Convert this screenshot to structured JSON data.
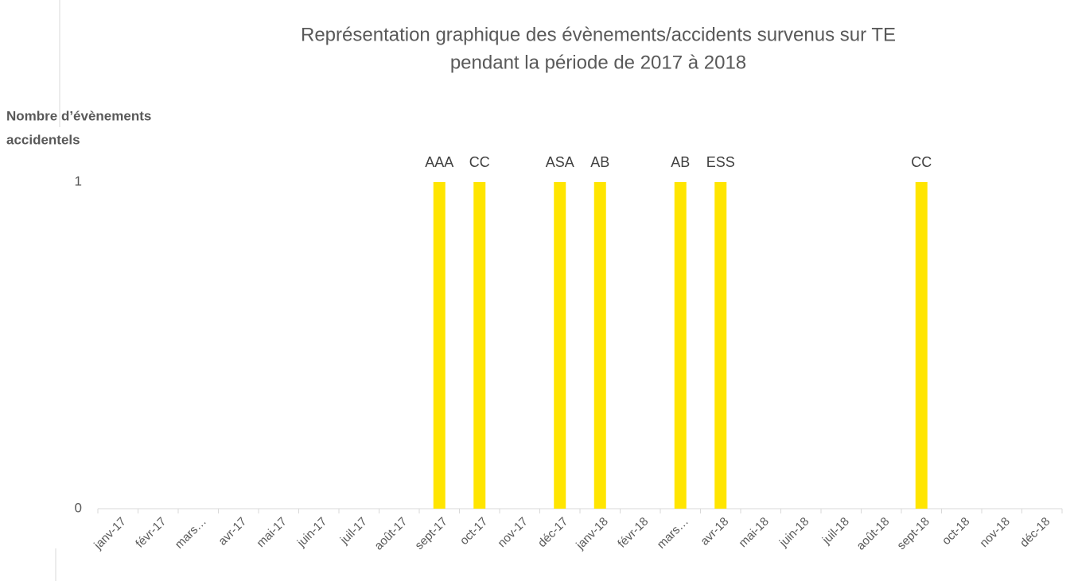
{
  "chart_data": {
    "type": "bar",
    "title": [
      "Représentation graphique des évènements/accidents survenus sur TE",
      "pendant la période de 2017 à 2018"
    ],
    "y_label": [
      "Nombre d’évènements",
      "accidentels"
    ],
    "categories": [
      "janv-17",
      "févr-17",
      "mars…",
      "avr-17",
      "mai-17",
      "juin-17",
      "juil-17",
      "août-17",
      "sept-17",
      "oct-17",
      "nov-17",
      "déc-17",
      "janv-18",
      "févr-18",
      "mars…",
      "avr-18",
      "mai-18",
      "juin-18",
      "juil-18",
      "août-18",
      "sept-18",
      "oct-18",
      "nov-18",
      "déc-18"
    ],
    "values": [
      0,
      0,
      0,
      0,
      0,
      0,
      0,
      0,
      1,
      1,
      0,
      1,
      1,
      0,
      1,
      1,
      0,
      0,
      0,
      0,
      1,
      0,
      0,
      0
    ],
    "value_labels": [
      null,
      null,
      null,
      null,
      null,
      null,
      null,
      null,
      "AAA",
      "CC",
      null,
      "ASA",
      "AB",
      null,
      "AB",
      "ESS",
      null,
      null,
      null,
      null,
      "CC",
      null,
      null,
      null
    ],
    "color": "#ffe500",
    "ylim": [
      0,
      1
    ],
    "yticks": [
      0,
      1
    ],
    "grid": false
  }
}
